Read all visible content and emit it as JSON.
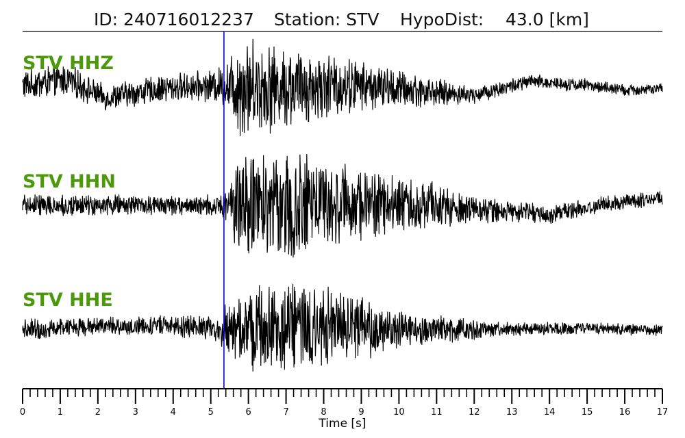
{
  "header": {
    "id_text": "ID: 240716012237",
    "station_text": "Station: STV",
    "dist_text": "HypoDist:    43.0 [km]"
  },
  "colors": {
    "trace": "#000000",
    "channel_label": "#4c9a0c",
    "pick_line": "#0000ee"
  },
  "chart_data": {
    "type": "line",
    "title": "ID: 240716012237   Station: STV   HypoDist:    43.0 [km]",
    "xlabel": "Time [s]",
    "xlim": [
      0,
      17
    ],
    "major_ticks": [
      0,
      1,
      2,
      3,
      4,
      5,
      6,
      7,
      8,
      9,
      10,
      11,
      12,
      13,
      14,
      15,
      16,
      17
    ],
    "minor_tick_step": 0.2,
    "tick_labels": [
      "0",
      "1",
      "2",
      "3",
      "4",
      "5",
      "6",
      "7",
      "8",
      "9",
      "10",
      "11",
      "12",
      "13",
      "14",
      "15",
      "16",
      "17"
    ],
    "pick_time": 5.35,
    "series": [
      {
        "name": "STV HHZ",
        "envelope": [
          [
            0,
            0.22
          ],
          [
            1,
            0.25
          ],
          [
            2,
            0.18
          ],
          [
            3,
            0.2
          ],
          [
            4,
            0.2
          ],
          [
            5,
            0.22
          ],
          [
            5.35,
            0.3
          ],
          [
            5.8,
            0.75
          ],
          [
            6.8,
            0.6
          ],
          [
            8,
            0.5
          ],
          [
            9,
            0.35
          ],
          [
            10,
            0.28
          ],
          [
            11,
            0.2
          ],
          [
            12,
            0.12
          ],
          [
            14,
            0.1
          ],
          [
            17,
            0.08
          ]
        ],
        "drift": [
          [
            0,
            0.05
          ],
          [
            1.2,
            0.12
          ],
          [
            2.2,
            -0.12
          ],
          [
            3,
            -0.05
          ],
          [
            4,
            0.02
          ],
          [
            5.3,
            0.05
          ],
          [
            7,
            0.02
          ],
          [
            9,
            0.05
          ],
          [
            11,
            -0.05
          ],
          [
            12,
            -0.08
          ],
          [
            13.5,
            0.1
          ],
          [
            15,
            0.05
          ],
          [
            16,
            -0.02
          ],
          [
            17,
            0
          ]
        ]
      },
      {
        "name": "STV HHN",
        "envelope": [
          [
            0,
            0.15
          ],
          [
            5.3,
            0.15
          ],
          [
            5.35,
            0.3
          ],
          [
            5.8,
            0.8
          ],
          [
            7,
            0.8
          ],
          [
            8.5,
            0.6
          ],
          [
            9.5,
            0.45
          ],
          [
            11,
            0.32
          ],
          [
            12,
            0.22
          ],
          [
            13,
            0.15
          ],
          [
            15,
            0.12
          ],
          [
            17,
            0.1
          ]
        ],
        "drift": [
          [
            0,
            0
          ],
          [
            5,
            0
          ],
          [
            10,
            0.02
          ],
          [
            12,
            -0.05
          ],
          [
            14,
            -0.12
          ],
          [
            15.5,
            0.02
          ],
          [
            17,
            0.1
          ]
        ]
      },
      {
        "name": "STV HHE",
        "envelope": [
          [
            0,
            0.15
          ],
          [
            2,
            0.12
          ],
          [
            3.5,
            0.15
          ],
          [
            5.2,
            0.18
          ],
          [
            5.35,
            0.35
          ],
          [
            6,
            0.6
          ],
          [
            7,
            0.65
          ],
          [
            8,
            0.6
          ],
          [
            9,
            0.45
          ],
          [
            10,
            0.3
          ],
          [
            11,
            0.2
          ],
          [
            13,
            0.1
          ],
          [
            17,
            0.08
          ]
        ],
        "drift": [
          [
            0,
            0
          ],
          [
            2,
            0.05
          ],
          [
            3,
            0.05
          ],
          [
            4.5,
            0.05
          ],
          [
            5.2,
            0
          ],
          [
            6,
            0
          ],
          [
            8,
            0.05
          ],
          [
            10,
            0.02
          ],
          [
            12,
            0
          ],
          [
            15,
            0.02
          ],
          [
            17,
            0
          ]
        ]
      }
    ]
  }
}
